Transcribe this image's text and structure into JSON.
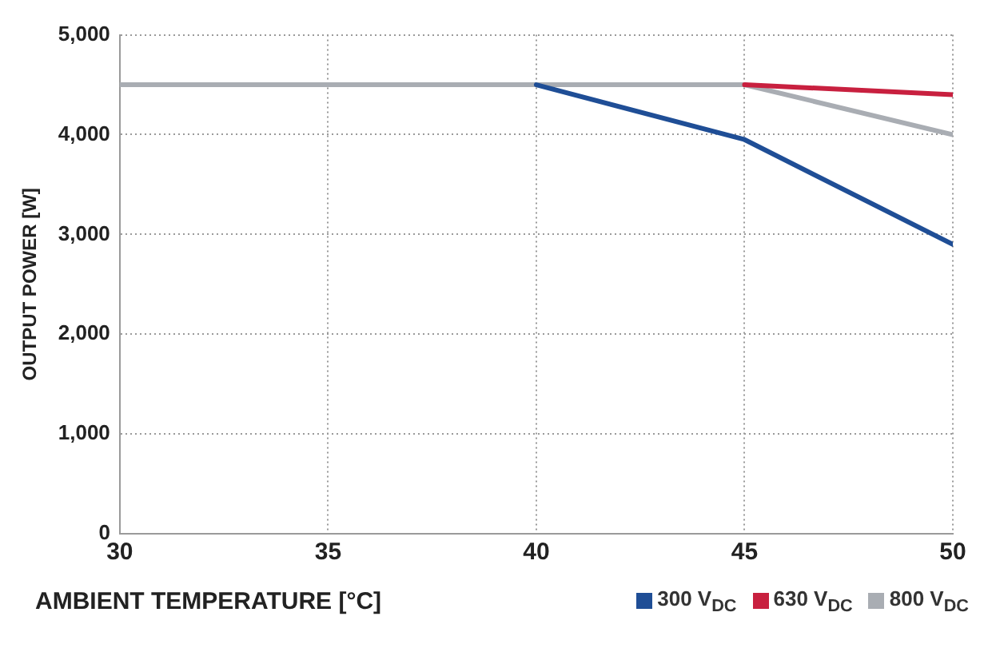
{
  "chart_data": {
    "type": "line",
    "xlabel": "AMBIENT TEMPERATURE [°C]",
    "ylabel": "OUTPUT POWER [W]",
    "xlim": [
      30,
      50
    ],
    "xticks": [
      30,
      35,
      40,
      45,
      50
    ],
    "ylim": [
      0,
      5000
    ],
    "yticks": [
      {
        "value": 0,
        "label": "0"
      },
      {
        "value": 1000,
        "label": "1,000"
      },
      {
        "value": 2000,
        "label": "2,000"
      },
      {
        "value": 3000,
        "label": "3,000"
      },
      {
        "value": 4000,
        "label": "4,000"
      },
      {
        "value": 5000,
        "label": "5,000"
      }
    ],
    "grid": true,
    "legend": "bottom right",
    "marker": "none",
    "line_style": "solid",
    "series": [
      {
        "name": "800 V$_{DC}$",
        "color": "#a9adb3",
        "x": [
          30,
          45,
          50
        ],
        "values": [
          4500,
          4500,
          4000
        ]
      },
      {
        "name": "630 V$_{DC}$",
        "color": "#c8203f",
        "x": [
          45,
          50
        ],
        "values": [
          4500,
          4400
        ]
      },
      {
        "name": "300 V$_{DC}$",
        "color": "#1f4e96",
        "x": [
          40,
          45,
          50
        ],
        "values": [
          4500,
          3950,
          2900
        ]
      }
    ]
  }
}
